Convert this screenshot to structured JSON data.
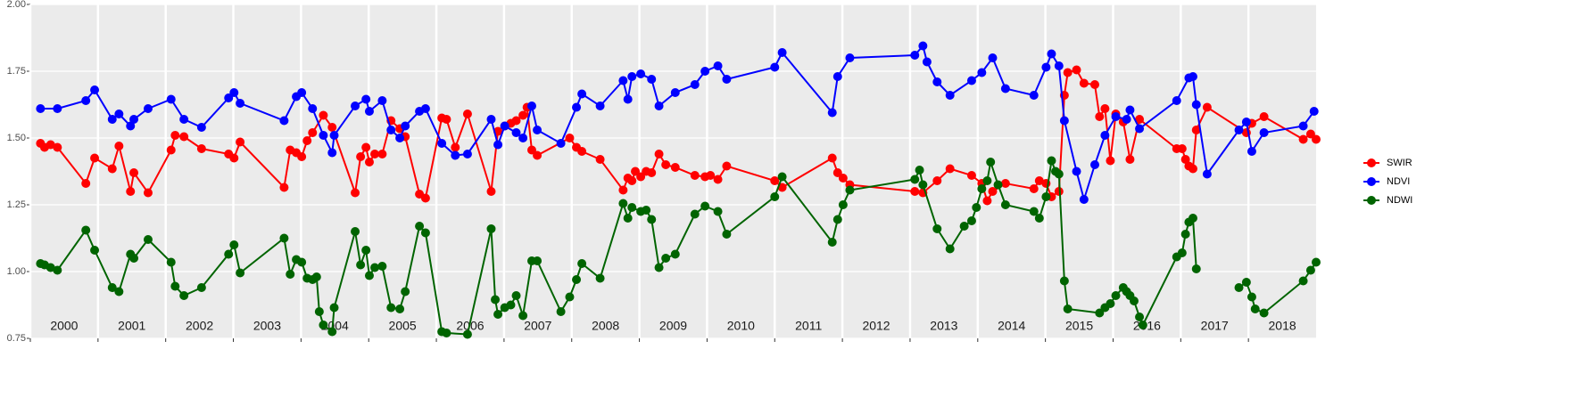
{
  "chart_data": {
    "type": "line",
    "xlim": [
      2000,
      2019
    ],
    "xticks": [
      2000,
      2001,
      2002,
      2003,
      2004,
      2005,
      2006,
      2007,
      2008,
      2009,
      2010,
      2011,
      2012,
      2013,
      2014,
      2015,
      2016,
      2017,
      2018
    ],
    "ylim": [
      0.75,
      2.0
    ],
    "yticks": [
      0.75,
      {
        "value": 1,
        "label": "1.00"
      },
      1.25,
      {
        "value": 1.5,
        "label": "1.50"
      },
      1.75,
      {
        "value": 2,
        "label": "2.00"
      }
    ],
    "grid": true,
    "legend": "right",
    "series": [
      {
        "name": "SWIR",
        "color": "#ff0000",
        "x": [
          2000.15,
          2000.21,
          2000.3,
          2000.4,
          2000.82,
          2000.95,
          2001.21,
          2001.31,
          2001.48,
          2001.53,
          2001.74,
          2002.08,
          2002.14,
          2002.27,
          2002.53,
          2002.93,
          2003.01,
          2003.1,
          2003.75,
          2003.84,
          2003.93,
          2004.01,
          2004.09,
          2004.17,
          2004.33,
          2004.46,
          2004.8,
          2004.88,
          2004.96,
          2005.01,
          2005.09,
          2005.2,
          2005.33,
          2005.46,
          2005.54,
          2005.75,
          2005.84,
          2006.08,
          2006.15,
          2006.28,
          2006.46,
          2006.81,
          2006.91,
          2007.01,
          2007.1,
          2007.18,
          2007.28,
          2007.34,
          2007.41,
          2007.49,
          2007.97,
          2008.07,
          2008.15,
          2008.42,
          2008.76,
          2008.83,
          2008.89,
          2008.94,
          2009.02,
          2009.1,
          2009.18,
          2009.29,
          2009.39,
          2009.53,
          2009.82,
          2009.97,
          2010.05,
          2010.16,
          2010.29,
          2011.0,
          2011.11,
          2011.85,
          2011.93,
          2012.01,
          2012.11,
          2013.07,
          2013.19,
          2013.4,
          2013.59,
          2013.91,
          2014.06,
          2014.14,
          2014.22,
          2014.41,
          2014.83,
          2014.91,
          2015.01,
          2015.09,
          2015.2,
          2015.28,
          2015.33,
          2015.46,
          2015.57,
          2015.73,
          2015.8,
          2015.88,
          2015.96,
          2016.04,
          2016.15,
          2016.25,
          2016.39,
          2016.94,
          2017.02,
          2017.07,
          2017.12,
          2017.18,
          2017.23,
          2017.39,
          2017.97,
          2018.05,
          2018.23,
          2018.81,
          2018.92,
          2019.0
        ],
        "values": [
          1.48,
          1.465,
          1.475,
          1.465,
          1.33,
          1.425,
          1.385,
          1.47,
          1.3,
          1.37,
          1.295,
          1.455,
          1.51,
          1.505,
          1.46,
          1.44,
          1.425,
          1.485,
          1.315,
          1.455,
          1.445,
          1.43,
          1.49,
          1.52,
          1.585,
          1.54,
          1.295,
          1.43,
          1.465,
          1.41,
          1.44,
          1.44,
          1.565,
          1.535,
          1.505,
          1.29,
          1.275,
          1.575,
          1.57,
          1.465,
          1.59,
          1.3,
          1.525,
          1.545,
          1.555,
          1.565,
          1.585,
          1.615,
          1.455,
          1.435,
          1.5,
          1.465,
          1.45,
          1.42,
          1.305,
          1.35,
          1.34,
          1.375,
          1.355,
          1.375,
          1.37,
          1.44,
          1.4,
          1.39,
          1.36,
          1.355,
          1.36,
          1.345,
          1.395,
          1.34,
          1.315,
          1.425,
          1.37,
          1.35,
          1.325,
          1.3,
          1.295,
          1.34,
          1.385,
          1.36,
          1.33,
          1.265,
          1.3,
          1.33,
          1.31,
          1.34,
          1.33,
          1.28,
          1.3,
          1.66,
          1.745,
          1.755,
          1.705,
          1.7,
          1.58,
          1.61,
          1.415,
          1.59,
          1.56,
          1.42,
          1.57,
          1.46,
          1.46,
          1.42,
          1.395,
          1.385,
          1.53,
          1.615,
          1.52,
          1.555,
          1.58,
          1.495,
          1.515,
          1.495
        ]
      },
      {
        "name": "NDVI",
        "color": "#0000ff",
        "x": [
          2000.15,
          2000.4,
          2000.82,
          2000.95,
          2001.21,
          2001.31,
          2001.48,
          2001.53,
          2001.74,
          2002.08,
          2002.27,
          2002.53,
          2002.93,
          2003.01,
          2003.1,
          2003.75,
          2003.93,
          2004.01,
          2004.17,
          2004.33,
          2004.46,
          2004.49,
          2004.8,
          2004.96,
          2005.01,
          2005.2,
          2005.33,
          2005.46,
          2005.54,
          2005.75,
          2005.84,
          2006.08,
          2006.28,
          2006.46,
          2006.81,
          2006.91,
          2007.01,
          2007.18,
          2007.28,
          2007.41,
          2007.49,
          2007.84,
          2008.07,
          2008.15,
          2008.42,
          2008.76,
          2008.83,
          2008.89,
          2009.02,
          2009.18,
          2009.29,
          2009.53,
          2009.82,
          2009.97,
          2010.16,
          2010.29,
          2011.0,
          2011.11,
          2011.85,
          2011.93,
          2012.11,
          2013.07,
          2013.19,
          2013.25,
          2013.4,
          2013.59,
          2013.91,
          2014.06,
          2014.22,
          2014.41,
          2014.83,
          2015.01,
          2015.09,
          2015.2,
          2015.28,
          2015.46,
          2015.57,
          2015.73,
          2015.88,
          2016.04,
          2016.2,
          2016.25,
          2016.39,
          2016.94,
          2017.12,
          2017.18,
          2017.23,
          2017.39,
          2017.86,
          2017.97,
          2018.05,
          2018.23,
          2018.81,
          2018.97
        ],
        "values": [
          1.61,
          1.61,
          1.64,
          1.68,
          1.57,
          1.59,
          1.545,
          1.57,
          1.61,
          1.645,
          1.57,
          1.54,
          1.65,
          1.67,
          1.63,
          1.565,
          1.655,
          1.67,
          1.61,
          1.51,
          1.445,
          1.51,
          1.62,
          1.645,
          1.6,
          1.64,
          1.53,
          1.5,
          1.545,
          1.6,
          1.61,
          1.48,
          1.435,
          1.44,
          1.57,
          1.475,
          1.545,
          1.52,
          1.5,
          1.62,
          1.53,
          1.48,
          1.615,
          1.665,
          1.62,
          1.715,
          1.645,
          1.73,
          1.74,
          1.72,
          1.62,
          1.67,
          1.7,
          1.75,
          1.77,
          1.72,
          1.765,
          1.82,
          1.595,
          1.73,
          1.8,
          1.81,
          1.845,
          1.785,
          1.71,
          1.66,
          1.715,
          1.745,
          1.8,
          1.685,
          1.66,
          1.765,
          1.815,
          1.77,
          1.565,
          1.375,
          1.27,
          1.4,
          1.51,
          1.58,
          1.57,
          1.605,
          1.535,
          1.64,
          1.725,
          1.73,
          1.625,
          1.365,
          1.53,
          1.56,
          1.45,
          1.52,
          1.545,
          1.6
        ]
      },
      {
        "name": "NDWI",
        "color": "#006400",
        "x": [
          2000.15,
          2000.21,
          2000.3,
          2000.4,
          2000.82,
          2000.95,
          2001.21,
          2001.31,
          2001.48,
          2001.53,
          2001.74,
          2002.08,
          2002.14,
          2002.27,
          2002.53,
          2002.93,
          2003.01,
          2003.1,
          2003.75,
          2003.84,
          2003.93,
          2004.01,
          2004.09,
          2004.17,
          2004.23,
          2004.27,
          2004.33,
          2004.46,
          2004.49,
          2004.8,
          2004.88,
          2004.96,
          2005.01,
          2005.09,
          2005.2,
          2005.33,
          2005.46,
          2005.54,
          2005.75,
          2005.84,
          2006.08,
          2006.15,
          2006.46,
          2006.81,
          2006.87,
          2006.91,
          2007.01,
          2007.1,
          2007.18,
          2007.28,
          2007.41,
          2007.49,
          2007.84,
          2007.97,
          2008.07,
          2008.15,
          2008.42,
          2008.76,
          2008.83,
          2008.89,
          2009.02,
          2009.1,
          2009.18,
          2009.29,
          2009.39,
          2009.53,
          2009.82,
          2009.97,
          2010.16,
          2010.29,
          2011.0,
          2011.11,
          2011.85,
          2011.93,
          2012.01,
          2012.11,
          2013.07,
          2013.14,
          2013.19,
          2013.4,
          2013.59,
          2013.8,
          2013.91,
          2013.98,
          2014.06,
          2014.14,
          2014.19,
          2014.3,
          2014.41,
          2014.83,
          2014.91,
          2015.01,
          2015.09,
          2015.15,
          2015.2,
          2015.28,
          2015.33,
          2015.8,
          2015.88,
          2015.96,
          2016.04,
          2016.15,
          2016.2,
          2016.25,
          2016.31,
          2016.39,
          2016.44,
          2016.94,
          2017.02,
          2017.07,
          2017.12,
          2017.18,
          2017.23,
          null,
          2017.86,
          2017.97,
          2018.05,
          2018.1,
          2018.23,
          2018.81,
          2018.92,
          2019.0
        ],
        "values": [
          1.03,
          1.025,
          1.015,
          1.005,
          1.155,
          1.08,
          0.94,
          0.925,
          1.065,
          1.05,
          1.12,
          1.035,
          0.945,
          0.91,
          0.94,
          1.065,
          1.1,
          0.995,
          1.125,
          0.99,
          1.045,
          1.035,
          0.975,
          0.97,
          0.98,
          0.85,
          0.8,
          0.775,
          0.865,
          1.15,
          1.025,
          1.08,
          0.985,
          1.015,
          1.02,
          0.865,
          0.86,
          0.925,
          1.17,
          1.145,
          0.775,
          0.77,
          0.765,
          1.16,
          0.895,
          0.84,
          0.865,
          0.875,
          0.91,
          0.835,
          1.04,
          1.04,
          0.85,
          0.905,
          0.97,
          1.03,
          0.975,
          1.255,
          1.2,
          1.24,
          1.225,
          1.23,
          1.195,
          1.015,
          1.05,
          1.065,
          1.215,
          1.245,
          1.225,
          1.14,
          1.28,
          1.355,
          1.11,
          1.195,
          1.25,
          1.305,
          1.345,
          1.38,
          1.325,
          1.16,
          1.085,
          1.17,
          1.19,
          1.24,
          1.31,
          1.34,
          1.41,
          1.325,
          1.25,
          1.225,
          1.2,
          1.28,
          1.415,
          1.375,
          1.365,
          0.965,
          0.86,
          0.845,
          0.865,
          0.88,
          0.91,
          0.94,
          0.925,
          0.91,
          0.89,
          0.83,
          0.8,
          1.055,
          1.07,
          1.14,
          1.185,
          1.2,
          1.01,
          null,
          0.94,
          0.96,
          0.905,
          0.86,
          0.845,
          0.965,
          1.005,
          1.035
        ]
      }
    ]
  }
}
